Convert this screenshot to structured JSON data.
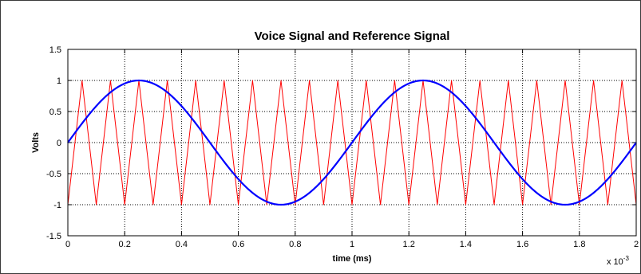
{
  "chart_data": {
    "type": "line",
    "title": "Voice Signal and Reference Signal",
    "xlabel": "time (ms)",
    "ylabel": "Volts",
    "x_exponent": "x 10",
    "x_exponent_power": "-3",
    "xlim": [
      0,
      2
    ],
    "ylim": [
      -1.5,
      1.5
    ],
    "x_ticks": [
      0,
      0.2,
      0.4,
      0.6,
      0.8,
      1,
      1.2,
      1.4,
      1.6,
      1.8,
      2
    ],
    "x_tick_labels": [
      "0",
      "0.2",
      "0.4",
      "0.6",
      "0.8",
      "1",
      "1.2",
      "1.4",
      "1.6",
      "1.8",
      "2"
    ],
    "y_ticks": [
      1.5,
      1,
      0.5,
      0,
      -0.5,
      -1,
      -1.5
    ],
    "y_tick_labels": [
      "1.5",
      "1",
      "0.5",
      "0",
      "-0.5",
      "-1",
      "-1.5"
    ],
    "grid": true,
    "series": [
      {
        "color": "#ff0000",
        "kind": "triangle",
        "x": [
          0,
          0.05,
          0.1,
          0.15,
          0.2,
          0.25,
          0.3,
          0.35,
          0.4,
          0.45,
          0.5,
          0.55,
          0.6,
          0.65,
          0.7,
          0.75,
          0.8,
          0.85,
          0.9,
          0.95,
          1,
          1.05,
          1.1,
          1.15,
          1.2,
          1.25,
          1.3,
          1.35,
          1.4,
          1.45,
          1.5,
          1.55,
          1.6,
          1.65,
          1.7,
          1.75,
          1.8,
          1.85,
          1.9,
          1.95,
          2
        ],
        "y": [
          -1,
          1,
          -1,
          1,
          -1,
          1,
          -1,
          1,
          -1,
          1,
          -1,
          1,
          -1,
          1,
          -1,
          1,
          -1,
          1,
          -1,
          1,
          -1,
          1,
          -1,
          1,
          -1,
          1,
          -1,
          1,
          -1,
          1,
          -1,
          1,
          -1,
          1,
          -1,
          1,
          -1,
          1,
          -1,
          1,
          -1
        ]
      },
      {
        "color": "#0000ff",
        "kind": "sine",
        "amplitude": 1,
        "period": 1,
        "x": [
          0,
          0.25,
          0.5,
          0.75,
          1,
          1.25,
          1.5,
          1.75,
          2
        ],
        "y": [
          0,
          1,
          0,
          -1,
          0,
          1,
          0,
          -1,
          0
        ]
      }
    ]
  }
}
